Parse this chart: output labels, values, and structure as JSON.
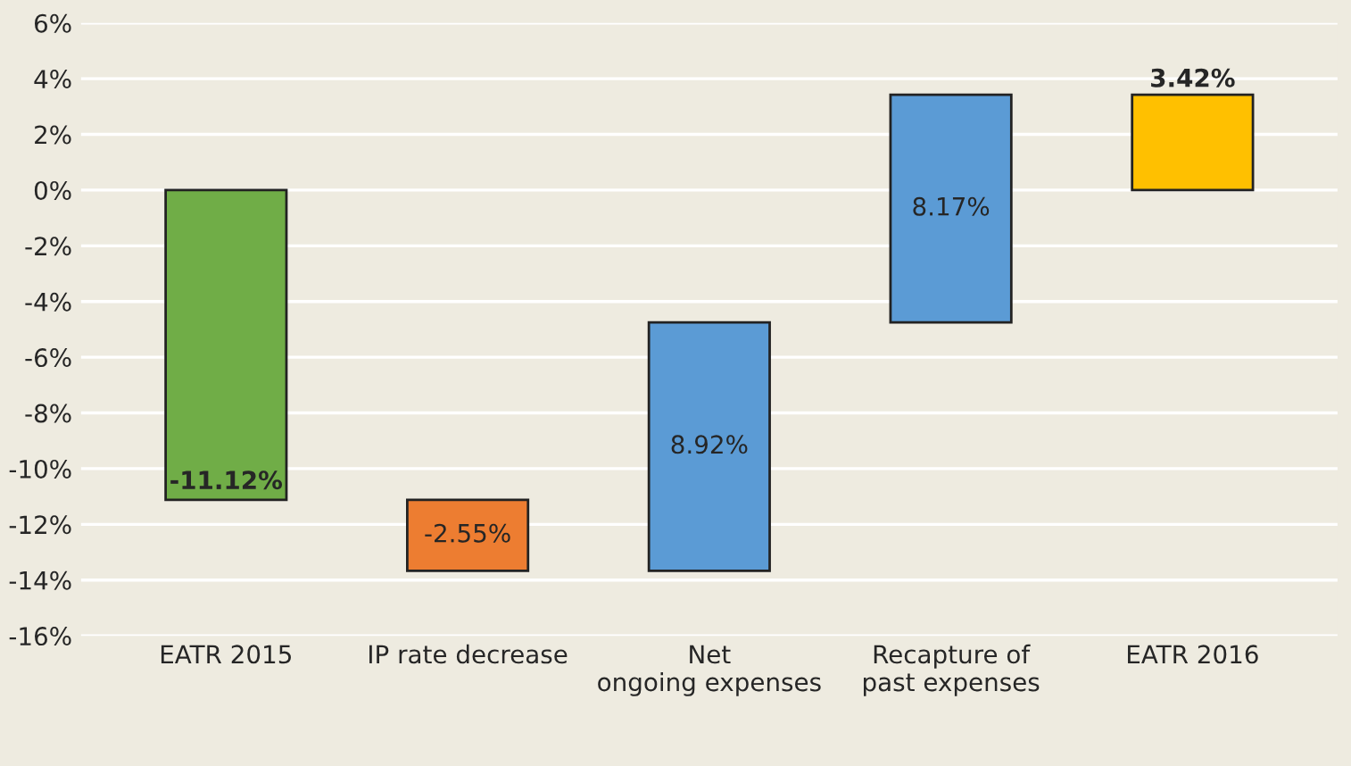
{
  "chart_data": {
    "type": "bar",
    "categories": [
      "EATR 2015",
      "IP rate decrease",
      "Net\nongoing expenses",
      "Recapture of\npast expenses",
      "EATR 2016"
    ],
    "values": [
      -11.12,
      -2.55,
      8.92,
      8.17,
      3.42
    ],
    "base": [
      0,
      -11.12,
      -13.67,
      -4.75,
      0
    ],
    "colors": [
      "#70ad47",
      "#ed7d31",
      "#5b9bd5",
      "#5b9bd5",
      "#ffc000"
    ],
    "value_labels": [
      "-11.12%",
      "-2.55%",
      "8.92%",
      "8.17%",
      "3.42%"
    ],
    "ylim": [
      -16,
      6
    ],
    "yticks": [
      {
        "value": -16,
        "label": "-16%"
      },
      {
        "value": -14,
        "label": "-14%"
      },
      {
        "value": -12,
        "label": "-12%"
      },
      {
        "value": -10,
        "label": "-10%"
      },
      {
        "value": -8,
        "label": "-8%"
      },
      {
        "value": -6,
        "label": "-6%"
      },
      {
        "value": -4,
        "label": "-4%"
      },
      {
        "value": -2,
        "label": "-2%"
      },
      {
        "value": 0,
        "label": "0%"
      },
      {
        "value": 2,
        "label": "2%"
      },
      {
        "value": 4,
        "label": "4%"
      },
      {
        "value": 6,
        "label": "6%"
      }
    ],
    "grid": "y",
    "legend": false
  }
}
